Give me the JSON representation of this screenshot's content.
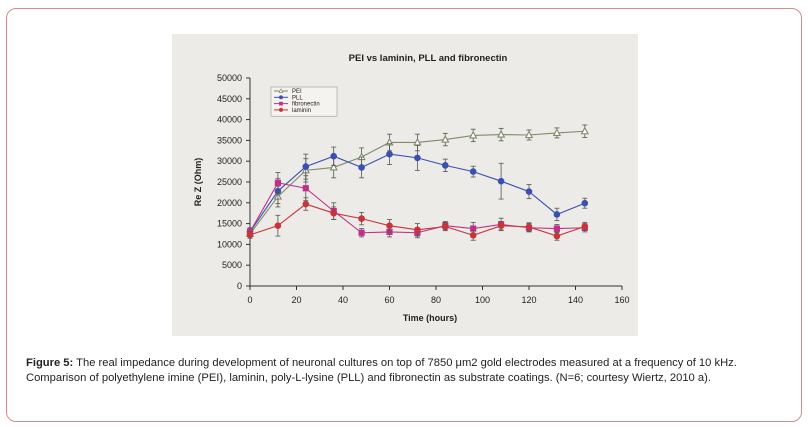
{
  "chart_data": {
    "type": "line",
    "title": "PEI vs laminin, PLL and fibronectin",
    "xlabel": "Time (hours)",
    "ylabel": "Re Z (Ohm)",
    "xlim": [
      0,
      160
    ],
    "ylim": [
      0,
      50000
    ],
    "xticks": [
      "0",
      "20",
      "40",
      "60",
      "80",
      "100",
      "120",
      "140",
      "160"
    ],
    "yticks": [
      "0",
      "5000",
      "10000",
      "15000",
      "20000",
      "25000",
      "30000",
      "35000",
      "40000",
      "45000",
      "50000"
    ],
    "legend_position": "top-left",
    "series": [
      {
        "name": "PEI",
        "color": "#7f8a6a",
        "marker": "triangle",
        "x": [
          0,
          12,
          24,
          36,
          48,
          60,
          72,
          84,
          96,
          108,
          120,
          132,
          144
        ],
        "values": [
          12500,
          21500,
          27800,
          28500,
          31000,
          34500,
          34500,
          35200,
          36200,
          36400,
          36300,
          36800,
          37200
        ],
        "errors": [
          1000,
          2500,
          2800,
          2500,
          2200,
          2000,
          2000,
          1500,
          1500,
          1500,
          1200,
          1200,
          1500
        ]
      },
      {
        "name": "PLL",
        "color": "#3a4fb0",
        "marker": "circle",
        "x": [
          0,
          12,
          24,
          36,
          48,
          60,
          72,
          84,
          96,
          108,
          120,
          132,
          144
        ],
        "values": [
          13000,
          22800,
          28700,
          31200,
          28500,
          31700,
          30800,
          29000,
          27500,
          25200,
          22700,
          17200,
          19900
        ],
        "errors": [
          1000,
          3000,
          3000,
          2200,
          2500,
          2500,
          3000,
          1500,
          1300,
          4300,
          1700,
          1500,
          1200
        ]
      },
      {
        "name": "fibronectin",
        "color": "#c0308a",
        "marker": "square",
        "x": [
          0,
          12,
          24,
          36,
          48,
          60,
          72,
          84,
          96,
          108,
          120,
          132,
          144
        ],
        "values": [
          13000,
          24800,
          23500,
          18000,
          12800,
          13000,
          12800,
          14500,
          13800,
          14800,
          14000,
          13800,
          14000
        ],
        "errors": [
          800,
          2500,
          3000,
          2000,
          1000,
          1200,
          1200,
          1000,
          1500,
          1500,
          1000,
          1000,
          1000
        ]
      },
      {
        "name": "laminin",
        "color": "#c8343a",
        "marker": "circle",
        "x": [
          0,
          12,
          24,
          36,
          48,
          60,
          72,
          84,
          96,
          108,
          120,
          132,
          144
        ],
        "values": [
          12300,
          14500,
          19700,
          17500,
          16200,
          14500,
          13500,
          14300,
          12200,
          14500,
          14200,
          12000,
          14300
        ],
        "errors": [
          800,
          2500,
          1500,
          1500,
          1500,
          1500,
          1500,
          1000,
          1200,
          1000,
          1000,
          1000,
          1000
        ]
      }
    ]
  },
  "caption": {
    "label": "Figure 5:",
    "text": " The real impedance during development of neuronal cultures on top of 7850 μm2 gold electrodes measured at a frequency of 10 kHz. Comparison of polyethylene imine (PEI), laminin, poly-L-lysine (PLL) and fibronectin as substrate coatings. (N=6; courtesy Wiertz, 2010 a)."
  }
}
